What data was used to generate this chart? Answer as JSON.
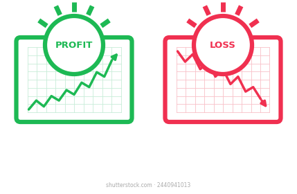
{
  "green_color": "#1db954",
  "red_color": "#f03050",
  "grid_green": "#c8ecd8",
  "grid_red": "#f9c0c8",
  "bg_white": "#ffffff",
  "profit_label": "PROFIT",
  "loss_label": "LOSS",
  "profit_line_x": [
    0,
    1,
    2,
    3,
    4,
    5,
    6,
    7,
    8,
    9,
    10,
    11,
    12
  ],
  "profit_line_y": [
    0.3,
    0.9,
    0.5,
    1.2,
    0.9,
    1.6,
    1.3,
    2.1,
    1.8,
    2.8,
    2.5,
    3.6,
    4.2
  ],
  "loss_line_x": [
    0,
    1,
    2,
    3,
    4,
    5,
    6,
    7,
    8,
    9,
    10,
    11,
    12
  ],
  "loss_line_y": [
    4.2,
    3.5,
    4.0,
    3.0,
    3.5,
    2.5,
    3.0,
    2.0,
    2.5,
    1.5,
    1.8,
    1.0,
    0.3
  ],
  "watermark": "shutterstock.com · 2440941013",
  "ray_angles_deg": [
    -55,
    -25,
    0,
    25,
    55
  ],
  "n_grid_cols": 10,
  "n_grid_rows": 8
}
